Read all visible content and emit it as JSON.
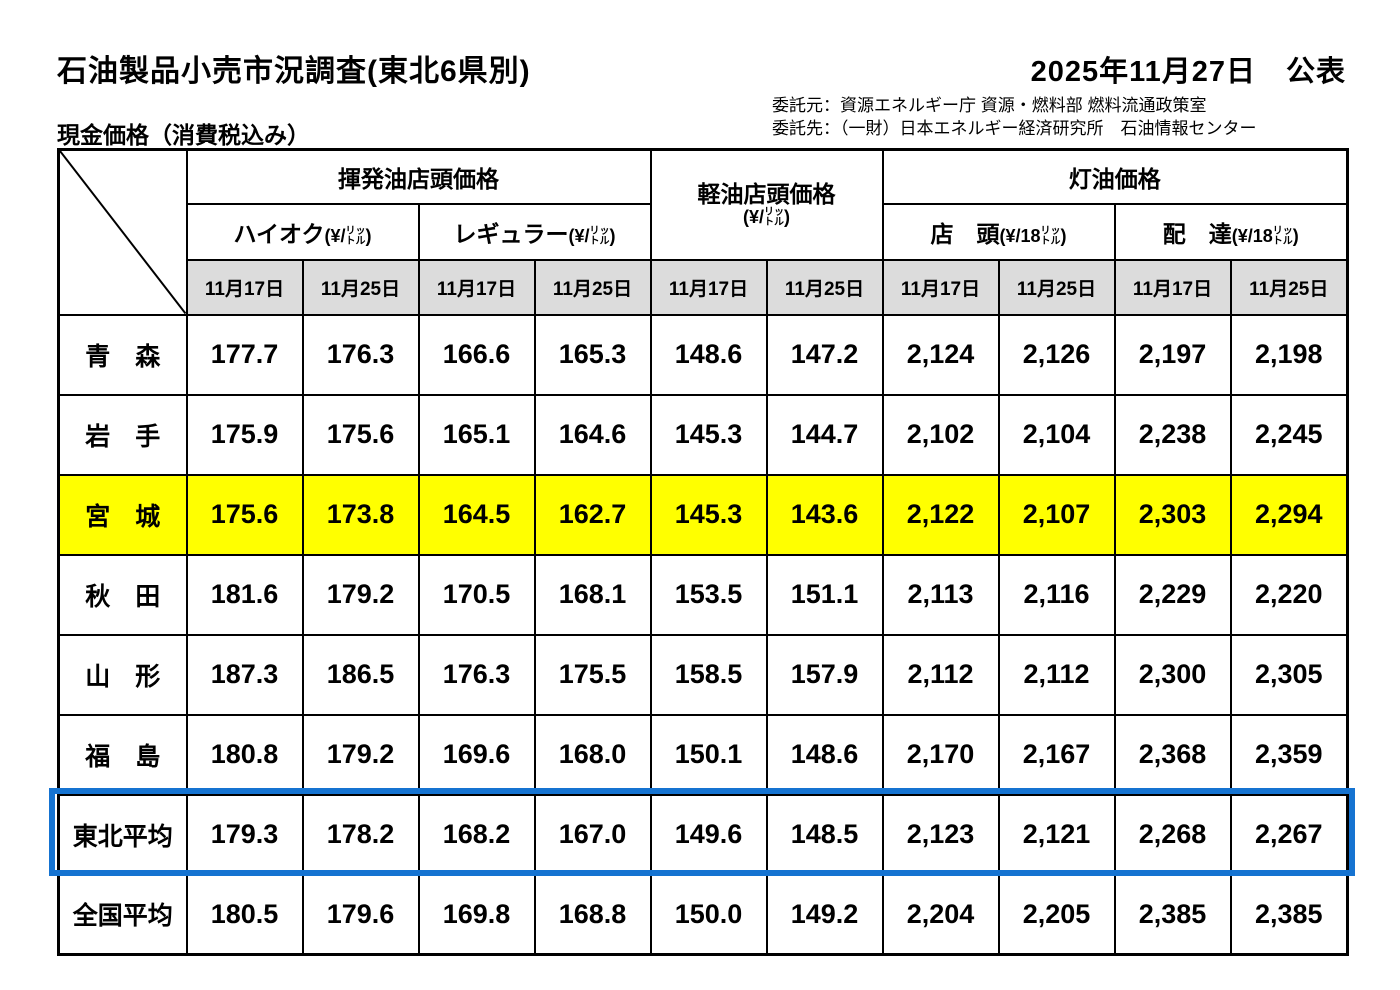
{
  "page": {
    "title": "石油製品小売市況調査(東北6県別)",
    "publish_date": "2025年11月27日　公表",
    "commission_from": "委託元：資源エネルギー庁 資源・燃料部 燃料流通政策室",
    "commission_to": "委託先：（一財）日本エネルギー経済研究所　石油情報センター",
    "price_note": "現金価格（消費税込み）"
  },
  "colors": {
    "highlight_yellow": "#FFFF00",
    "outline_blue": "#1573D1",
    "header_gray": "#DCDCDC"
  },
  "table": {
    "groups": {
      "gasoline": "揮発油店頭価格",
      "diesel_line1": "軽油店頭価格",
      "diesel_unit_pre": "(¥/",
      "diesel_unit_top": "リッ",
      "diesel_unit_bot": "トル",
      "diesel_unit_post": ")",
      "kerosene": "灯油価格"
    },
    "subs": [
      {
        "name": "ハイオク",
        "unit_pre": "(¥/",
        "unit_top": "リッ",
        "unit_bot": "トル",
        "unit_post": ")"
      },
      {
        "name": "レギュラー",
        "unit_pre": "(¥/",
        "unit_top": "リッ",
        "unit_bot": "トル",
        "unit_post": ")"
      },
      {
        "name": "店　頭",
        "unit_pre": "(¥/18",
        "unit_top": "リッ",
        "unit_bot": "トル",
        "unit_post": ")"
      },
      {
        "name": "配　達",
        "unit_pre": "(¥/18",
        "unit_top": "リッ",
        "unit_bot": "トル",
        "unit_post": ")"
      }
    ],
    "date_columns": [
      "11月17日",
      "11月25日"
    ],
    "date_group_count": 5,
    "rows": [
      {
        "pref": "青　森",
        "values": [
          "177.7",
          "176.3",
          "166.6",
          "165.3",
          "148.6",
          "147.2",
          "2,124",
          "2,126",
          "2,197",
          "2,198"
        ]
      },
      {
        "pref": "岩　手",
        "values": [
          "175.9",
          "175.6",
          "165.1",
          "164.6",
          "145.3",
          "144.7",
          "2,102",
          "2,104",
          "2,238",
          "2,245"
        ]
      },
      {
        "pref": "宮　城",
        "values": [
          "175.6",
          "173.8",
          "164.5",
          "162.7",
          "145.3",
          "143.6",
          "2,122",
          "2,107",
          "2,303",
          "2,294"
        ],
        "highlight": "yellow"
      },
      {
        "pref": "秋　田",
        "values": [
          "181.6",
          "179.2",
          "170.5",
          "168.1",
          "153.5",
          "151.1",
          "2,113",
          "2,116",
          "2,229",
          "2,220"
        ]
      },
      {
        "pref": "山　形",
        "values": [
          "187.3",
          "186.5",
          "176.3",
          "175.5",
          "158.5",
          "157.9",
          "2,112",
          "2,112",
          "2,300",
          "2,305"
        ]
      },
      {
        "pref": "福　島",
        "values": [
          "180.8",
          "179.2",
          "169.6",
          "168.0",
          "150.1",
          "148.6",
          "2,170",
          "2,167",
          "2,368",
          "2,359"
        ]
      },
      {
        "pref": "東北平均",
        "values": [
          "179.3",
          "178.2",
          "168.2",
          "167.0",
          "149.6",
          "148.5",
          "2,123",
          "2,121",
          "2,268",
          "2,267"
        ],
        "outline": "blue"
      },
      {
        "pref": "全国平均",
        "values": [
          "180.5",
          "179.6",
          "169.8",
          "168.8",
          "150.0",
          "149.2",
          "2,204",
          "2,205",
          "2,385",
          "2,385"
        ]
      }
    ]
  }
}
